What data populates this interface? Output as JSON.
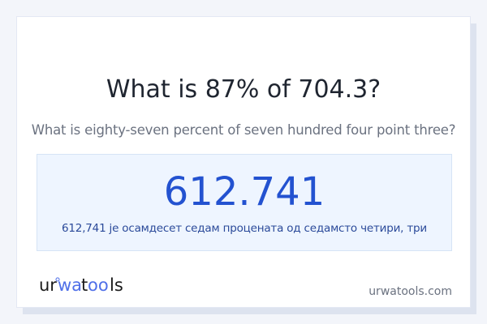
{
  "title": "What is 87% of 704.3?",
  "subtitle": "What is eighty-seven percent of seven hundred four point three?",
  "result": {
    "value": "612.741",
    "words": "612,741 је осамдесет седам процената од седамсто четири, три"
  },
  "footer": {
    "logo_text": "urwatools",
    "site": "urwatools.com"
  },
  "colors": {
    "accent": "#2352d0",
    "logo_accent": "#4f6fe8",
    "result_bg": "#eef5ff"
  }
}
